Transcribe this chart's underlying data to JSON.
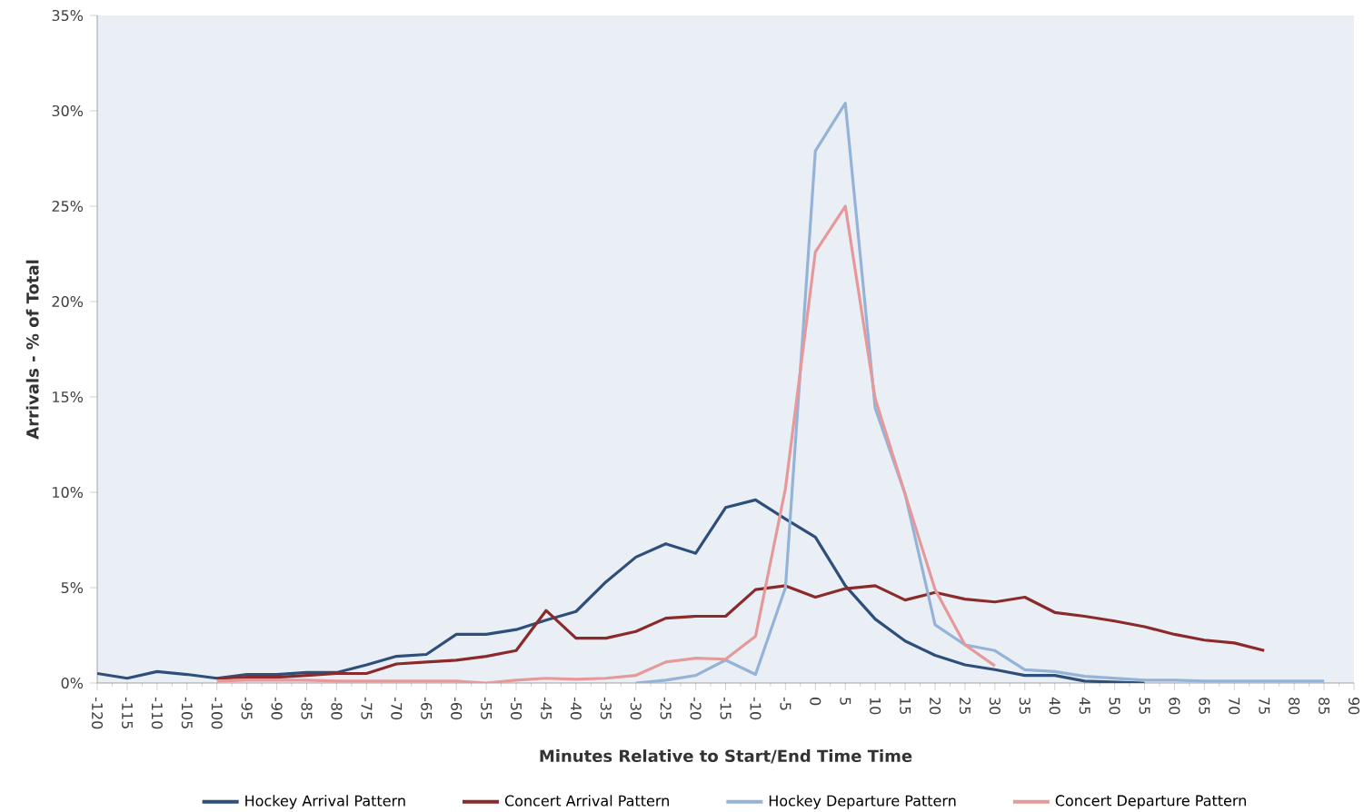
{
  "chart_data": {
    "type": "line",
    "xlabel": "Minutes Relative to Start/End Time Time",
    "ylabel": "Arrivals - % of Total",
    "xlim": [
      -120,
      90
    ],
    "xticks": [
      -120,
      -115,
      -110,
      -105,
      -100,
      -95,
      -90,
      -85,
      -80,
      -75,
      -70,
      -65,
      -60,
      -55,
      -50,
      -45,
      -40,
      -35,
      -30,
      -25,
      -20,
      -15,
      -10,
      -5,
      0,
      5,
      10,
      15,
      20,
      25,
      30,
      35,
      40,
      45,
      50,
      55,
      60,
      65,
      70,
      75,
      80,
      85,
      90
    ],
    "ylim": [
      0,
      35
    ],
    "yticks": [
      {
        "value": 0,
        "label": "0%"
      },
      {
        "value": 5,
        "label": "5%"
      },
      {
        "value": 10,
        "label": "10%"
      },
      {
        "value": 15,
        "label": "15%"
      },
      {
        "value": 20,
        "label": "20%"
      },
      {
        "value": 25,
        "label": "25%"
      },
      {
        "value": 30,
        "label": "30%"
      },
      {
        "value": 35,
        "label": "35%"
      }
    ],
    "legend": "bottom",
    "series": [
      {
        "name": "Hockey Arrival Pattern",
        "color": "#2e4f7a",
        "x": [
          -120,
          -115,
          -110,
          -105,
          -100,
          -95,
          -90,
          -85,
          -80,
          -75,
          -70,
          -65,
          -60,
          -55,
          -50,
          -45,
          -40,
          -35,
          -30,
          -25,
          -20,
          -15,
          -10,
          -5,
          0,
          5,
          10,
          15,
          20,
          25,
          30,
          35,
          40,
          45,
          50,
          55
        ],
        "values": [
          0.5,
          0.25,
          0.6,
          0.45,
          0.25,
          0.45,
          0.45,
          0.55,
          0.55,
          0.95,
          1.4,
          1.5,
          2.55,
          2.55,
          2.8,
          3.3,
          3.75,
          5.3,
          6.6,
          7.3,
          6.8,
          9.2,
          9.6,
          8.6,
          7.65,
          5.1,
          3.35,
          2.2,
          1.45,
          0.95,
          0.7,
          0.4,
          0.4,
          0.1,
          0.05,
          0
        ]
      },
      {
        "name": "Concert Arrival Pattern",
        "color": "#8b2a2a",
        "x": [
          -100,
          -95,
          -90,
          -85,
          -80,
          -75,
          -70,
          -65,
          -60,
          -55,
          -50,
          -45,
          -40,
          -35,
          -30,
          -25,
          -20,
          -15,
          -10,
          -5,
          0,
          5,
          10,
          15,
          20,
          25,
          30,
          35,
          40,
          45,
          50,
          55,
          60,
          65,
          70,
          75
        ],
        "values": [
          0.25,
          0.3,
          0.3,
          0.4,
          0.5,
          0.5,
          1.0,
          1.1,
          1.2,
          1.4,
          1.7,
          3.8,
          2.35,
          2.35,
          2.7,
          3.4,
          3.5,
          3.5,
          4.9,
          5.1,
          4.5,
          4.95,
          5.1,
          4.35,
          4.75,
          4.4,
          4.25,
          4.5,
          3.7,
          3.5,
          3.25,
          2.95,
          2.55,
          2.25,
          2.1,
          1.7
        ]
      },
      {
        "name": "Hockey Departure Pattern",
        "color": "#95b3d7",
        "x": [
          -30,
          -25,
          -20,
          -15,
          -10,
          -5,
          0,
          5,
          10,
          15,
          20,
          25,
          30,
          35,
          40,
          45,
          50,
          55,
          60,
          65,
          70,
          75,
          80,
          85
        ],
        "values": [
          0,
          0.15,
          0.4,
          1.2,
          0.45,
          5,
          27.9,
          30.4,
          14.4,
          9.9,
          3.05,
          2.0,
          1.7,
          0.7,
          0.6,
          0.35,
          0.25,
          0.15,
          0.15,
          0.1,
          0.1,
          0.1,
          0.1,
          0.1
        ]
      },
      {
        "name": "Concert Departure Pattern",
        "color": "#e6999a",
        "x": [
          -100,
          -95,
          -90,
          -85,
          -80,
          -75,
          -70,
          -65,
          -60,
          -55,
          -50,
          -45,
          -40,
          -35,
          -30,
          -25,
          -20,
          -15,
          -10,
          -5,
          0,
          5,
          10,
          15,
          20,
          25,
          30
        ],
        "values": [
          0.1,
          0.15,
          0.15,
          0.15,
          0.1,
          0.1,
          0.1,
          0.1,
          0.1,
          0,
          0.15,
          0.25,
          0.2,
          0.25,
          0.4,
          1.1,
          1.3,
          1.25,
          2.45,
          10.2,
          22.6,
          25.0,
          14.9,
          9.9,
          4.9,
          2.0,
          0.9
        ]
      }
    ]
  }
}
